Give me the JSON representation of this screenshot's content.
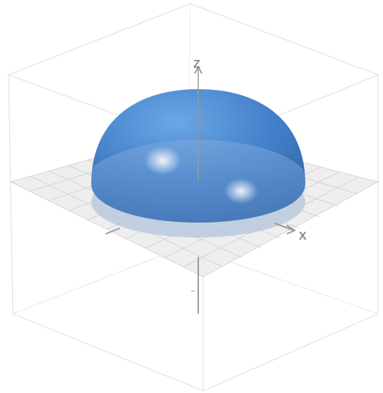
{
  "scene": {
    "type": "3d-surface-plot",
    "surface": "hemisphere",
    "surface_color": "#2e6fbd",
    "surface_opacity_note": "semi-transparent",
    "bounding_box_color": "#dcdcdc",
    "xy_plane_color": "#ededed",
    "grid_color": "#c8c8c8",
    "axis_color": "#9a9a9a"
  },
  "axes": {
    "z_label": "Z",
    "x_label": "X"
  }
}
